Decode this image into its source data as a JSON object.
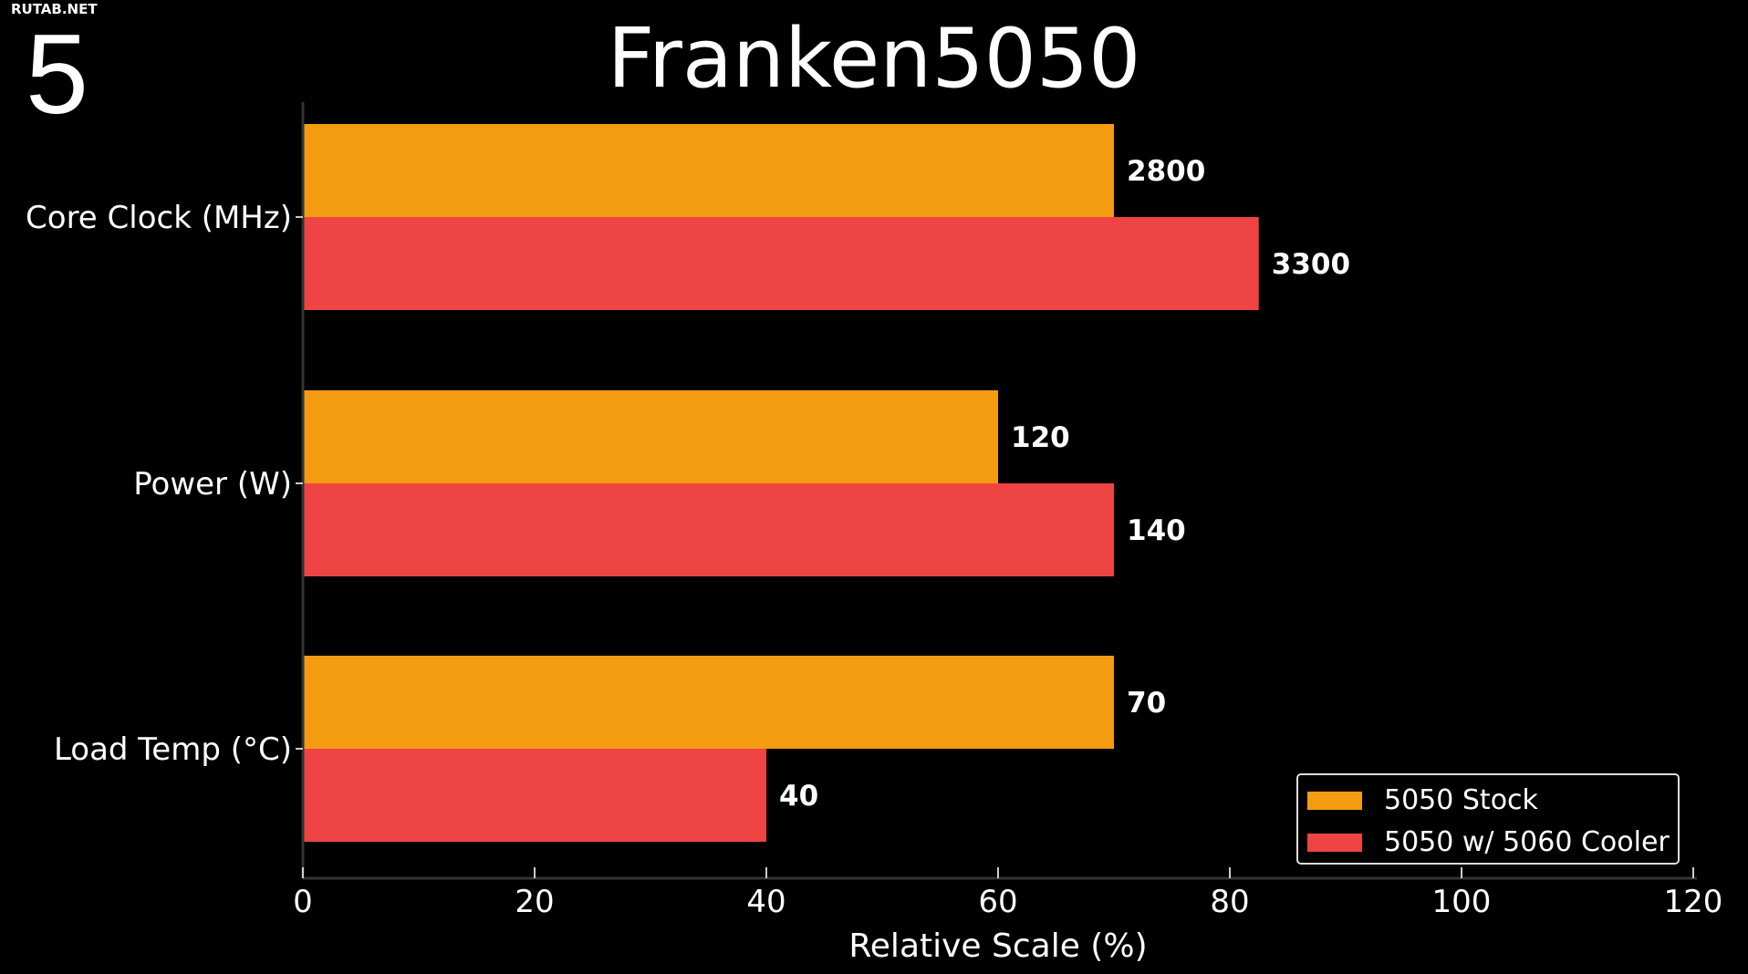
{
  "watermark": "RUTAB.NET",
  "slide_number": "5",
  "chart_data": {
    "type": "bar",
    "orientation": "horizontal",
    "title": "Franken5050",
    "xlabel": "Relative Scale (%)",
    "ylabel": "",
    "xlim": [
      0,
      120
    ],
    "xticks": [
      "0",
      "20",
      "40",
      "60",
      "80",
      "100",
      "120"
    ],
    "categories": [
      "Core Clock (MHz)",
      "Power (W)",
      "Load Temp (°C)"
    ],
    "series": [
      {
        "name": "5050 Stock",
        "color": "#F39C12",
        "values": [
          70,
          60,
          70
        ],
        "labels": [
          "2800",
          "120",
          "70"
        ]
      },
      {
        "name": "5050 w/ 5060 Cooler",
        "color": "#EF4444",
        "values": [
          82.5,
          70,
          40
        ],
        "labels": [
          "3300",
          "140",
          "40"
        ]
      }
    ],
    "grid": false,
    "legend_position": "bottom-right"
  }
}
